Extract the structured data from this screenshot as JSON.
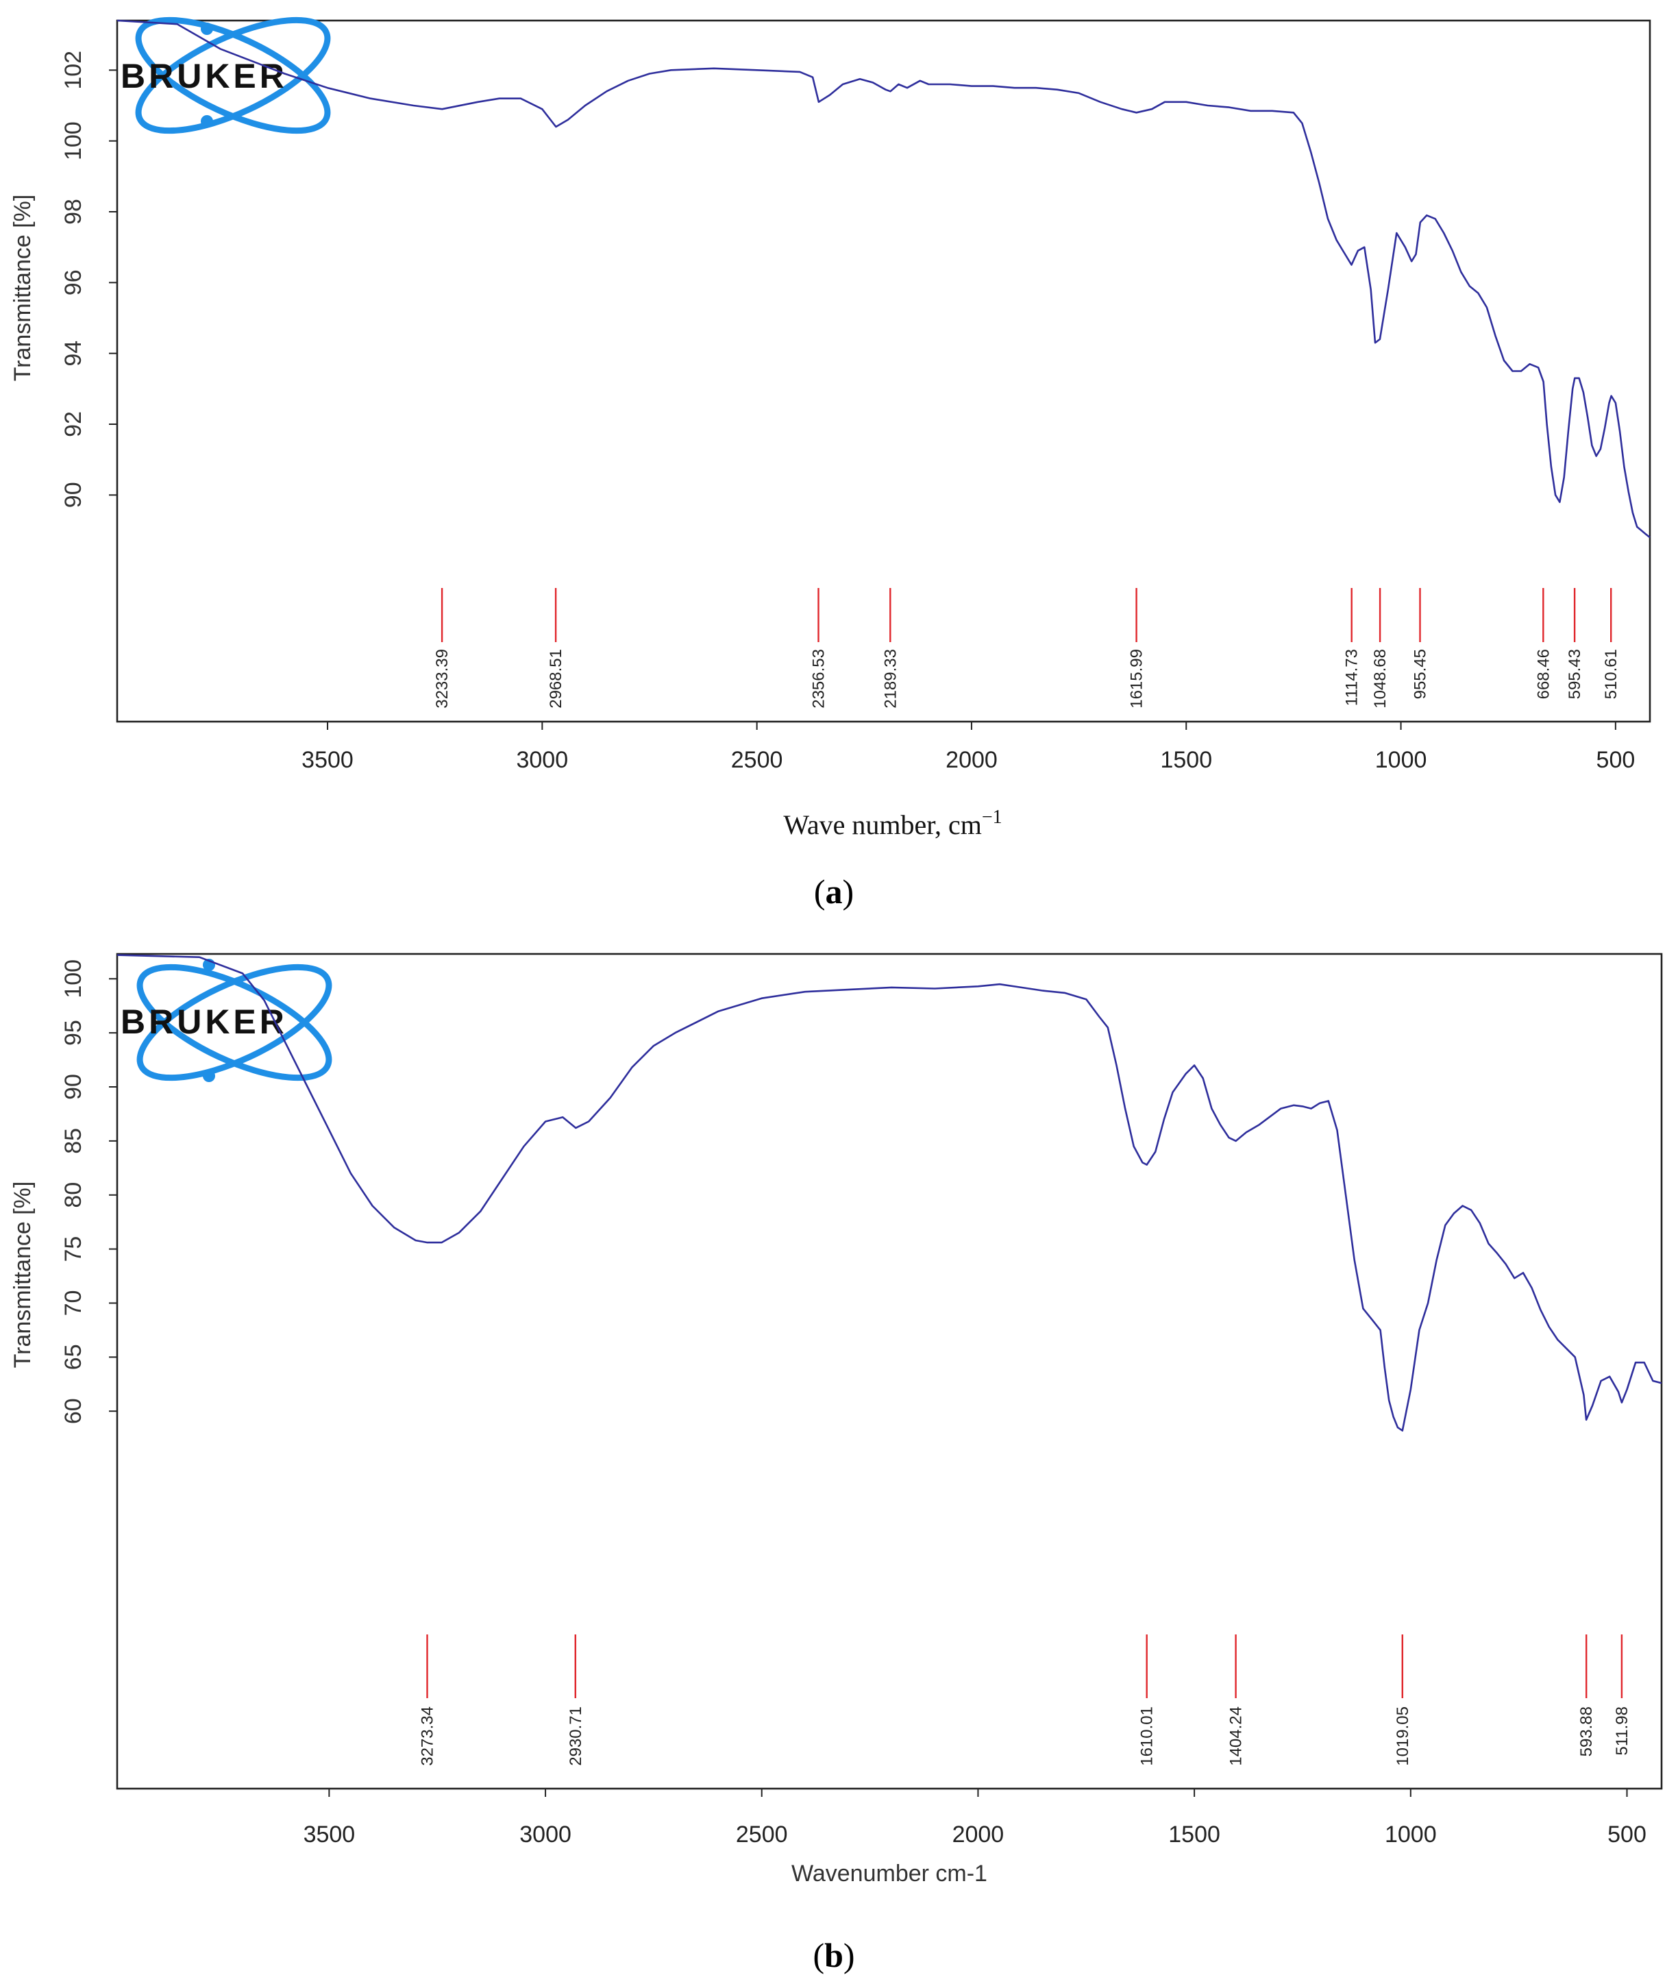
{
  "logo_text": "BRUKER",
  "colors": {
    "spectrum": "#2e2e9c",
    "markers": "#e0262b",
    "logo": "#1f8fe6"
  },
  "chart_data": [
    {
      "type": "line",
      "panel_label": "(a)",
      "panel_letter": "a",
      "xlabel_main": "Wave number, cm",
      "xlabel_sup": "−1",
      "ylabel": "Transmittance [%]",
      "xlim": [
        3990,
        420
      ],
      "ylim": [
        88.4,
        103.4
      ],
      "x_reversed": true,
      "grid": false,
      "xticks": [
        3500,
        3000,
        2500,
        2000,
        1500,
        1000,
        500
      ],
      "yticks": [
        90,
        92,
        94,
        96,
        98,
        100,
        102
      ],
      "peak_labels": [
        "3233.39",
        "2968.51",
        "2356.53",
        "2189.33",
        "1615.99",
        "1114.73",
        "1048.68",
        "955.45",
        "668.46",
        "595.43",
        "510.61"
      ],
      "peaks": [
        3233.39,
        2968.51,
        2356.53,
        2189.33,
        1615.99,
        1114.73,
        1048.68,
        955.45,
        668.46,
        595.43,
        510.61
      ],
      "series": [
        {
          "x": [
            3990,
            3850,
            3750,
            3600,
            3500,
            3400,
            3300,
            3233,
            3150,
            3100,
            3050,
            3000,
            2968,
            2940,
            2900,
            2850,
            2800,
            2750,
            2700,
            2600,
            2500,
            2400,
            2370,
            2356,
            2330,
            2300,
            2260,
            2230,
            2200,
            2189,
            2170,
            2150,
            2120,
            2100,
            2050,
            2000,
            1950,
            1900,
            1850,
            1800,
            1750,
            1700,
            1650,
            1616,
            1580,
            1550,
            1500,
            1450,
            1400,
            1350,
            1300,
            1250,
            1230,
            1210,
            1190,
            1170,
            1150,
            1130,
            1115,
            1100,
            1085,
            1070,
            1060,
            1049,
            1030,
            1010,
            990,
            975,
            965,
            955,
            940,
            920,
            900,
            880,
            860,
            840,
            820,
            800,
            780,
            760,
            740,
            720,
            700,
            680,
            668,
            660,
            650,
            640,
            630,
            620,
            610,
            600,
            595,
            585,
            575,
            565,
            555,
            545,
            535,
            525,
            515,
            510,
            500,
            490,
            480,
            470,
            460,
            450,
            440,
            430,
            420
          ],
          "y": [
            103.4,
            103.3,
            102.6,
            101.9,
            101.5,
            101.2,
            101.0,
            100.9,
            101.1,
            101.2,
            101.2,
            100.9,
            100.4,
            100.6,
            101.0,
            101.4,
            101.7,
            101.9,
            102.0,
            102.05,
            102.0,
            101.95,
            101.8,
            101.1,
            101.3,
            101.6,
            101.75,
            101.65,
            101.45,
            101.4,
            101.6,
            101.5,
            101.7,
            101.6,
            101.6,
            101.55,
            101.55,
            101.5,
            101.5,
            101.45,
            101.35,
            101.1,
            100.9,
            100.8,
            100.9,
            101.1,
            101.1,
            101.0,
            100.95,
            100.85,
            100.85,
            100.8,
            100.5,
            99.7,
            98.8,
            97.8,
            97.2,
            96.8,
            96.5,
            96.9,
            97.0,
            95.8,
            94.3,
            94.4,
            95.8,
            97.4,
            97.0,
            96.6,
            96.8,
            97.7,
            97.9,
            97.8,
            97.4,
            96.9,
            96.3,
            95.9,
            95.7,
            95.3,
            94.5,
            93.8,
            93.5,
            93.5,
            93.7,
            93.6,
            93.2,
            92.0,
            90.8,
            90.0,
            89.8,
            90.5,
            91.8,
            93.0,
            93.3,
            93.3,
            92.9,
            92.2,
            91.4,
            91.1,
            91.3,
            91.9,
            92.6,
            92.8,
            92.6,
            91.8,
            90.8,
            90.1,
            89.5,
            89.1,
            89.0,
            88.9,
            88.8
          ]
        }
      ]
    },
    {
      "type": "line",
      "panel_label": "(b)",
      "panel_letter": "b",
      "xlabel_main": "Wavenumber cm-1",
      "xlabel_sup": "",
      "ylabel": "Transmittance [%]",
      "xlim": [
        3990,
        420
      ],
      "ylim": [
        44.1,
        102.3
      ],
      "x_reversed": true,
      "grid": false,
      "xticks": [
        3500,
        3000,
        2500,
        2000,
        1500,
        1000,
        500
      ],
      "yticks": [
        60,
        65,
        70,
        75,
        80,
        85,
        90,
        95,
        100
      ],
      "peak_labels": [
        "3273.34",
        "2930.71",
        "1610.01",
        "1404.24",
        "1019.05",
        "593.88",
        "511.98"
      ],
      "peaks": [
        3273.34,
        2930.71,
        1610.01,
        1404.24,
        1019.05,
        593.88,
        511.98
      ],
      "series": [
        {
          "x": [
            3990,
            3800,
            3700,
            3650,
            3600,
            3550,
            3500,
            3450,
            3400,
            3350,
            3300,
            3273,
            3240,
            3200,
            3150,
            3100,
            3050,
            3000,
            2960,
            2930,
            2900,
            2850,
            2800,
            2750,
            2700,
            2600,
            2500,
            2400,
            2300,
            2200,
            2100,
            2000,
            1950,
            1900,
            1850,
            1800,
            1750,
            1720,
            1700,
            1680,
            1660,
            1640,
            1620,
            1610,
            1590,
            1570,
            1550,
            1520,
            1500,
            1480,
            1460,
            1440,
            1420,
            1404,
            1380,
            1350,
            1300,
            1270,
            1250,
            1230,
            1210,
            1190,
            1170,
            1150,
            1130,
            1110,
            1090,
            1070,
            1060,
            1050,
            1040,
            1030,
            1019,
            1000,
            980,
            960,
            940,
            920,
            900,
            880,
            860,
            840,
            820,
            800,
            780,
            760,
            740,
            720,
            700,
            680,
            660,
            640,
            620,
            600,
            594,
            580,
            560,
            540,
            520,
            512,
            500,
            480,
            460,
            440,
            420
          ],
          "y": [
            102.2,
            102.0,
            100.5,
            98.0,
            94.0,
            90.0,
            86.0,
            82.0,
            79.0,
            77.0,
            75.8,
            75.6,
            75.6,
            76.5,
            78.5,
            81.5,
            84.5,
            86.8,
            87.2,
            86.2,
            86.8,
            89.0,
            91.8,
            93.8,
            95.0,
            97.0,
            98.2,
            98.8,
            99.0,
            99.2,
            99.1,
            99.3,
            99.5,
            99.2,
            98.9,
            98.7,
            98.1,
            96.5,
            95.5,
            92.0,
            88.0,
            84.5,
            83.0,
            82.8,
            84.0,
            87.0,
            89.5,
            91.2,
            92.0,
            90.8,
            88.0,
            86.5,
            85.3,
            85.0,
            85.8,
            86.5,
            88.0,
            88.3,
            88.2,
            88.0,
            88.5,
            88.7,
            86.0,
            80.0,
            74.0,
            69.5,
            68.5,
            67.5,
            64.0,
            61.0,
            59.5,
            58.5,
            58.2,
            62.0,
            67.5,
            70.0,
            74.0,
            77.2,
            78.3,
            79.0,
            78.6,
            77.4,
            75.5,
            74.6,
            73.6,
            72.3,
            72.8,
            71.4,
            69.4,
            67.8,
            66.6,
            65.8,
            65.0,
            61.5,
            59.2,
            60.5,
            62.8,
            63.2,
            61.8,
            60.8,
            62.0,
            64.5,
            64.5,
            62.8,
            62.6
          ]
        }
      ]
    }
  ]
}
